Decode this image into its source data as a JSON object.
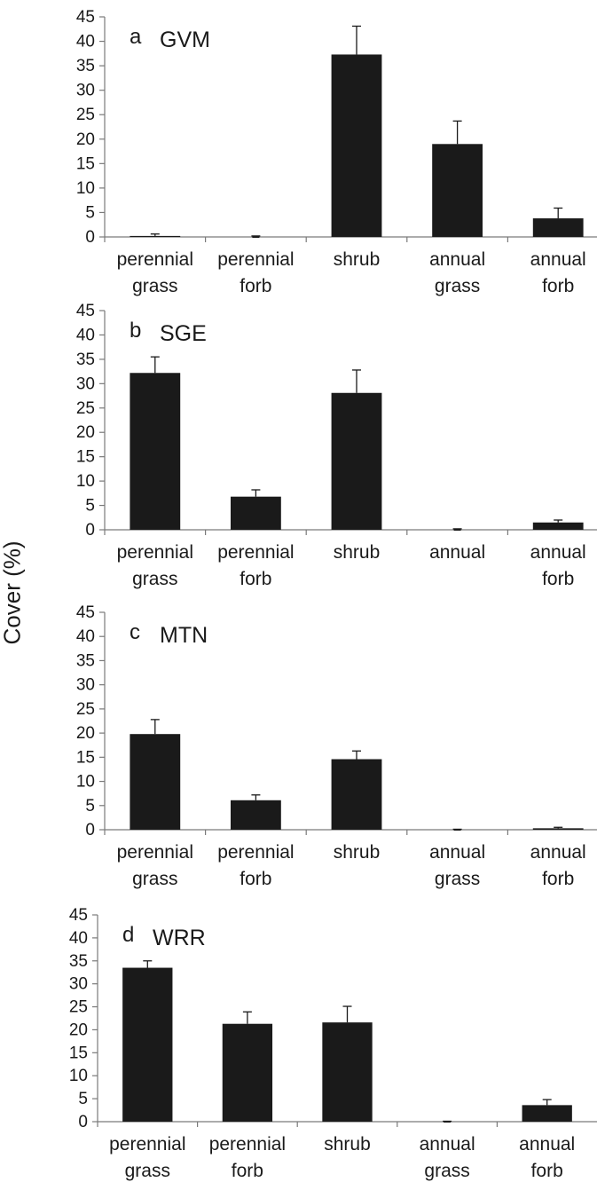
{
  "figure": {
    "ylabel": "Cover (%)"
  },
  "chart_data": [
    {
      "type": "bar",
      "panel_letter": "a",
      "title": "GVM",
      "categories": [
        "perennial\ngrass",
        "perennial\nforb",
        "shrub",
        "annual\ngrass",
        "annual\nforb"
      ],
      "values": [
        0.2,
        0,
        37.3,
        19,
        3.8
      ],
      "errors": [
        0.4,
        0.2,
        5.8,
        4.7,
        2.1
      ],
      "ylim": [
        0,
        45
      ],
      "yticks": [
        0,
        5,
        10,
        15,
        20,
        25,
        30,
        35,
        40,
        45
      ],
      "bar_color": "#1a1a1a"
    },
    {
      "type": "bar",
      "panel_letter": "b",
      "title": "SGE",
      "categories": [
        "perennial\ngrass",
        "perennial\nforb",
        "shrub",
        "annual",
        "annual\nforb"
      ],
      "values": [
        32.2,
        6.8,
        28.1,
        0,
        1.5
      ],
      "errors": [
        3.3,
        1.4,
        4.7,
        0.2,
        0.5
      ],
      "ylim": [
        0,
        45
      ],
      "yticks": [
        0,
        5,
        10,
        15,
        20,
        25,
        30,
        35,
        40,
        45
      ],
      "bar_color": "#1a1a1a"
    },
    {
      "type": "bar",
      "panel_letter": "c",
      "title": "MTN",
      "categories": [
        "perennial\ngrass",
        "perennial\nforb",
        "shrub",
        "annual\ngrass",
        "annual\nforb"
      ],
      "values": [
        19.8,
        6.1,
        14.6,
        0,
        0.3
      ],
      "errors": [
        3,
        1.1,
        1.7,
        0.1,
        0.2
      ],
      "ylim": [
        0,
        45
      ],
      "yticks": [
        0,
        5,
        10,
        15,
        20,
        25,
        30,
        35,
        40,
        45
      ],
      "bar_color": "#1a1a1a"
    },
    {
      "type": "bar",
      "panel_letter": "d",
      "title": "WRR",
      "categories": [
        "perennial\ngrass",
        "perennial\nforb",
        "shrub",
        "annual\ngrass",
        "annual\nforb"
      ],
      "values": [
        33.5,
        21.3,
        21.6,
        0,
        3.6
      ],
      "errors": [
        1.5,
        2.6,
        3.5,
        0.1,
        1.2
      ],
      "ylim": [
        0,
        45
      ],
      "yticks": [
        0,
        5,
        10,
        15,
        20,
        25,
        30,
        35,
        40,
        45
      ],
      "bar_color": "#1a1a1a"
    }
  ]
}
